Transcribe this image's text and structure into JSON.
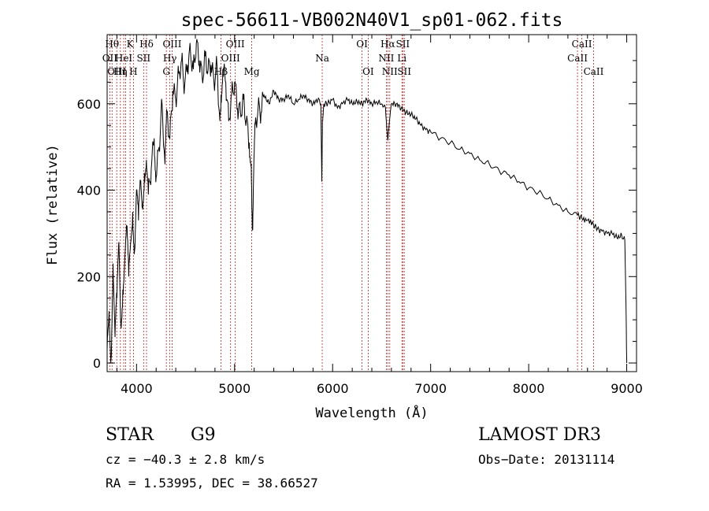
{
  "chart_data": {
    "type": "line",
    "title": "spec-56611-VB002N40V1_sp01-062.fits",
    "xlabel": "Wavelength (Å)",
    "ylabel": "Flux (relative)",
    "xlim": [
      3700,
      9100
    ],
    "ylim": [
      -20,
      760
    ],
    "xticks": [
      4000,
      5000,
      6000,
      7000,
      8000,
      9000
    ],
    "yticks": [
      0,
      200,
      400,
      600
    ],
    "series": [
      {
        "name": "flux",
        "x": [
          3700,
          3720,
          3740,
          3760,
          3780,
          3800,
          3820,
          3840,
          3860,
          3880,
          3900,
          3920,
          3940,
          3960,
          3980,
          4000,
          4020,
          4040,
          4060,
          4080,
          4100,
          4120,
          4150,
          4180,
          4200,
          4230,
          4260,
          4290,
          4310,
          4340,
          4370,
          4400,
          4430,
          4460,
          4490,
          4520,
          4550,
          4580,
          4610,
          4640,
          4670,
          4700,
          4730,
          4760,
          4790,
          4820,
          4850,
          4861,
          4880,
          4910,
          4940,
          4970,
          5000,
          5030,
          5060,
          5090,
          5120,
          5150,
          5170,
          5183,
          5195,
          5210,
          5240,
          5270,
          5300,
          5350,
          5400,
          5450,
          5500,
          5550,
          5600,
          5650,
          5700,
          5750,
          5800,
          5850,
          5880,
          5890,
          5896,
          5910,
          5950,
          6000,
          6050,
          6100,
          6150,
          6200,
          6250,
          6300,
          6350,
          6400,
          6450,
          6500,
          6540,
          6563,
          6580,
          6600,
          6650,
          6700,
          6750,
          6800,
          6850,
          6900,
          6950,
          7000,
          7100,
          7200,
          7300,
          7400,
          7500,
          7600,
          7700,
          7800,
          7900,
          8000,
          8100,
          8200,
          8300,
          8400,
          8498,
          8542,
          8600,
          8662,
          8700,
          8750,
          8800,
          8850,
          8900,
          8950,
          8980,
          8995,
          9000
        ],
        "values": [
          30,
          120,
          10,
          230,
          60,
          150,
          280,
          90,
          170,
          240,
          310,
          200,
          280,
          350,
          260,
          400,
          330,
          420,
          360,
          440,
          470,
          390,
          450,
          520,
          430,
          500,
          600,
          460,
          580,
          520,
          630,
          610,
          670,
          700,
          640,
          690,
          720,
          680,
          740,
          700,
          660,
          710,
          680,
          690,
          650,
          690,
          560,
          620,
          680,
          650,
          560,
          620,
          650,
          590,
          580,
          610,
          560,
          510,
          460,
          310,
          440,
          550,
          590,
          580,
          620,
          600,
          630,
          610,
          610,
          620,
          600,
          610,
          620,
          610,
          600,
          610,
          600,
          420,
          560,
          600,
          600,
          610,
          590,
          600,
          610,
          600,
          605,
          600,
          610,
          600,
          605,
          600,
          590,
          515,
          560,
          600,
          600,
          590,
          580,
          575,
          565,
          550,
          540,
          535,
          520,
          510,
          495,
          485,
          470,
          460,
          445,
          435,
          420,
          405,
          395,
          380,
          365,
          350,
          342,
          335,
          330,
          320,
          310,
          305,
          300,
          300,
          290,
          295,
          285,
          100,
          0
        ]
      }
    ],
    "lines": [
      {
        "x": 3727,
        "label": "OII",
        "row": 1
      },
      {
        "x": 3750,
        "label": "Hθ",
        "row": 0
      },
      {
        "x": 3798,
        "label": "OIII",
        "row": 2
      },
      {
        "x": 3835,
        "label": "Hη",
        "row": 2
      },
      {
        "x": 3869,
        "label": "HeI",
        "row": 1
      },
      {
        "x": 3889,
        "label": "",
        "row": 1
      },
      {
        "x": 3934,
        "label": "K",
        "row": 0
      },
      {
        "x": 3968,
        "label": "H",
        "row": 2
      },
      {
        "x": 4072,
        "label": "SII",
        "row": 1
      },
      {
        "x": 4102,
        "label": "Hδ",
        "row": 0
      },
      {
        "x": 4304,
        "label": "G",
        "row": 2
      },
      {
        "x": 4340,
        "label": "Hγ",
        "row": 1
      },
      {
        "x": 4363,
        "label": "OIII",
        "row": 0
      },
      {
        "x": 4861,
        "label": "Hβ",
        "row": 2
      },
      {
        "x": 4959,
        "label": "OIII",
        "row": 1
      },
      {
        "x": 5007,
        "label": "OIII",
        "row": 0
      },
      {
        "x": 5175,
        "label": "Mg",
        "row": 2
      },
      {
        "x": 5894,
        "label": "Na",
        "row": 1
      },
      {
        "x": 6300,
        "label": "OI",
        "row": 0
      },
      {
        "x": 6363,
        "label": "OI",
        "row": 2
      },
      {
        "x": 6548,
        "label": "NII",
        "row": 1
      },
      {
        "x": 6563,
        "label": "Hα",
        "row": 0
      },
      {
        "x": 6583,
        "label": "NII",
        "row": 2
      },
      {
        "x": 6707,
        "label": "Li",
        "row": 1
      },
      {
        "x": 6716,
        "label": "SII",
        "row": 0
      },
      {
        "x": 6731,
        "label": "SII",
        "row": 2
      },
      {
        "x": 8498,
        "label": "CaII",
        "row": 1
      },
      {
        "x": 8542,
        "label": "CaII",
        "row": 0
      },
      {
        "x": 8662,
        "label": "CaII",
        "row": 2
      }
    ]
  },
  "info": {
    "class": "STAR",
    "subclass": "G9",
    "survey": "LAMOST DR3",
    "cz": "cz = −40.3 ± 2.8 km/s",
    "obs_date": "Obs−Date: 20131114",
    "radec": "RA =   1.53995, DEC =  38.66527"
  }
}
